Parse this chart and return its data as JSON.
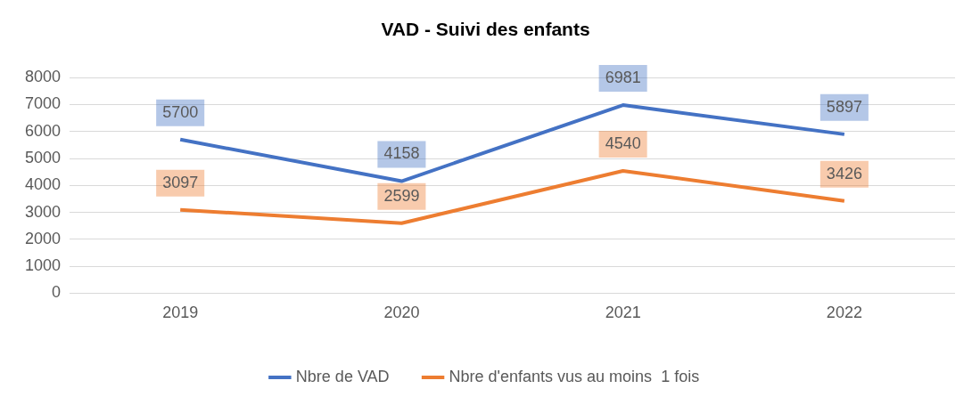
{
  "chart_data": {
    "type": "line",
    "title": "VAD - Suivi des enfants",
    "categories": [
      "2019",
      "2020",
      "2021",
      "2022"
    ],
    "series": [
      {
        "name": "Nbre de VAD",
        "color": "#4472c4",
        "values": [
          5700,
          4158,
          6981,
          5897
        ]
      },
      {
        "name": "Nbre d'enfants vus au moins  1 fois",
        "color": "#ed7d31",
        "values": [
          3097,
          2599,
          4540,
          3426
        ]
      }
    ],
    "ylim": [
      0,
      8000
    ],
    "yticks": [
      0,
      1000,
      2000,
      3000,
      4000,
      5000,
      6000,
      7000,
      8000
    ],
    "grid": "y",
    "legend": "bottom",
    "data_labels": true
  }
}
